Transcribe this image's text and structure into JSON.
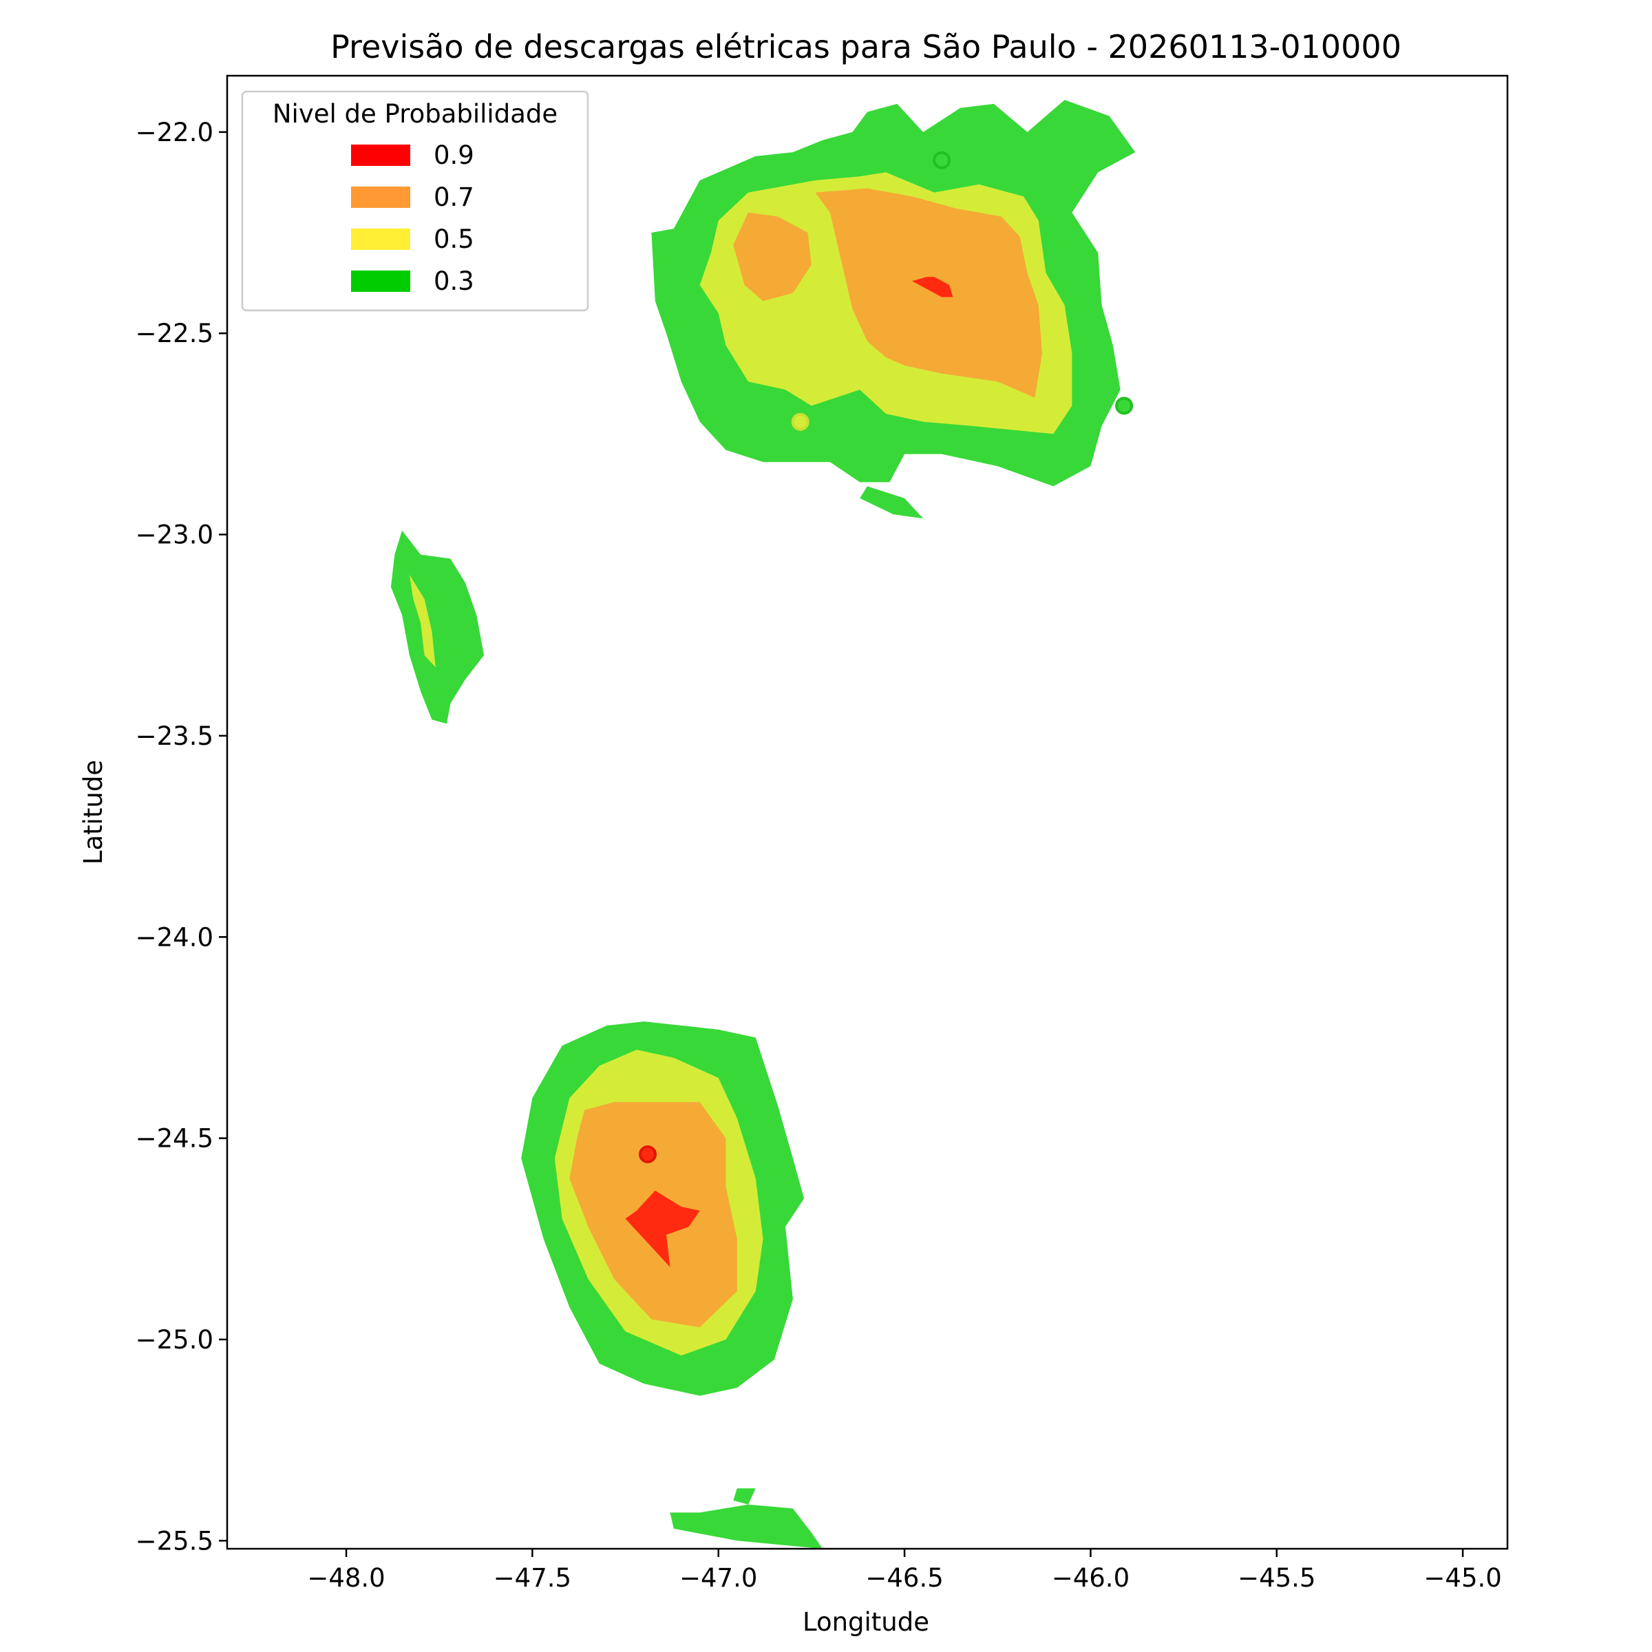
{
  "chart_data": {
    "type": "contour-map",
    "title": "Previsão de descargas elétricas para São Paulo - 20260113-010000",
    "xlabel": "Longitude",
    "ylabel": "Latitude",
    "xlim": [
      -48.32,
      -44.88
    ],
    "ylim": [
      -25.52,
      -21.86
    ],
    "x_ticks": [
      -48.0,
      -47.5,
      -47.0,
      -46.5,
      -46.0,
      -45.5,
      -45.0
    ],
    "x_tick_labels": [
      "−48.0",
      "−47.5",
      "−47.0",
      "−46.5",
      "−46.0",
      "−45.5",
      "−45.0"
    ],
    "y_ticks": [
      -22.0,
      -22.5,
      -23.0,
      -23.5,
      -24.0,
      -24.5,
      -25.0,
      -25.5
    ],
    "y_tick_labels": [
      "−22.0",
      "−22.5",
      "−23.0",
      "−23.5",
      "−24.0",
      "−24.5",
      "−25.0",
      "−25.5"
    ],
    "grid": false,
    "legend": {
      "title": "Nivel de Probabilidade",
      "placement": "top-left",
      "entries": [
        {
          "label": "0.9",
          "color": "#ff0000"
        },
        {
          "label": "0.7",
          "color": "#ff9933"
        },
        {
          "label": "0.5",
          "color": "#ffee33"
        },
        {
          "label": "0.3",
          "color": "#00cc00"
        }
      ]
    },
    "level_colors": {
      "0.3": "#38d838",
      "0.5": "#d4ec38",
      "0.7": "#f5aa36",
      "0.9": "#ff2a10"
    },
    "regions": [
      {
        "level": "0.3",
        "name": "north-cell-0.3",
        "lonlat": [
          [
            -46.64,
            -22.0
          ],
          [
            -46.72,
            -22.02
          ],
          [
            -46.8,
            -22.05
          ],
          [
            -46.9,
            -22.06
          ],
          [
            -47.05,
            -22.12
          ],
          [
            -47.12,
            -22.24
          ],
          [
            -47.18,
            -22.25
          ],
          [
            -47.17,
            -22.42
          ],
          [
            -47.14,
            -22.5
          ],
          [
            -47.1,
            -22.62
          ],
          [
            -47.05,
            -22.72
          ],
          [
            -46.98,
            -22.79
          ],
          [
            -46.88,
            -22.82
          ],
          [
            -46.7,
            -22.82
          ],
          [
            -46.62,
            -22.87
          ],
          [
            -46.54,
            -22.87
          ],
          [
            -46.5,
            -22.8
          ],
          [
            -46.4,
            -22.8
          ],
          [
            -46.25,
            -22.83
          ],
          [
            -46.1,
            -22.88
          ],
          [
            -46.0,
            -22.83
          ],
          [
            -45.97,
            -22.73
          ],
          [
            -45.92,
            -22.64
          ],
          [
            -45.94,
            -22.53
          ],
          [
            -45.97,
            -22.43
          ],
          [
            -45.98,
            -22.3
          ],
          [
            -46.05,
            -22.2
          ],
          [
            -45.98,
            -22.1
          ],
          [
            -45.88,
            -22.05
          ],
          [
            -45.95,
            -21.96
          ],
          [
            -46.07,
            -21.92
          ],
          [
            -46.17,
            -22.0
          ],
          [
            -46.26,
            -21.93
          ],
          [
            -46.35,
            -21.94
          ],
          [
            -46.45,
            -22.0
          ],
          [
            -46.52,
            -21.93
          ],
          [
            -46.6,
            -21.95
          ]
        ]
      },
      {
        "level": "0.3",
        "name": "north-cell-tail-0.3",
        "lonlat": [
          [
            -46.6,
            -22.88
          ],
          [
            -46.5,
            -22.91
          ],
          [
            -46.45,
            -22.96
          ],
          [
            -46.53,
            -22.95
          ],
          [
            -46.62,
            -22.91
          ]
        ]
      },
      {
        "level": "0.5",
        "name": "north-cell-0.5",
        "lonlat": [
          [
            -46.74,
            -22.12
          ],
          [
            -46.8,
            -22.13
          ],
          [
            -46.92,
            -22.15
          ],
          [
            -47.0,
            -22.22
          ],
          [
            -47.02,
            -22.3
          ],
          [
            -47.05,
            -22.38
          ],
          [
            -47.0,
            -22.45
          ],
          [
            -46.98,
            -22.53
          ],
          [
            -46.92,
            -22.62
          ],
          [
            -46.82,
            -22.64
          ],
          [
            -46.75,
            -22.68
          ],
          [
            -46.62,
            -22.64
          ],
          [
            -46.55,
            -22.7
          ],
          [
            -46.45,
            -22.72
          ],
          [
            -46.32,
            -22.73
          ],
          [
            -46.1,
            -22.75
          ],
          [
            -46.05,
            -22.68
          ],
          [
            -46.05,
            -22.55
          ],
          [
            -46.07,
            -22.43
          ],
          [
            -46.12,
            -22.35
          ],
          [
            -46.14,
            -22.22
          ],
          [
            -46.18,
            -22.16
          ],
          [
            -46.3,
            -22.13
          ],
          [
            -46.42,
            -22.15
          ],
          [
            -46.55,
            -22.1
          ],
          [
            -46.62,
            -22.11
          ]
        ]
      },
      {
        "level": "0.7",
        "name": "north-cell-0.7",
        "lonlat": [
          [
            -46.74,
            -22.15
          ],
          [
            -46.7,
            -22.2
          ],
          [
            -46.68,
            -22.28
          ],
          [
            -46.66,
            -22.36
          ],
          [
            -46.64,
            -22.44
          ],
          [
            -46.6,
            -22.52
          ],
          [
            -46.55,
            -22.56
          ],
          [
            -46.5,
            -22.58
          ],
          [
            -46.4,
            -22.6
          ],
          [
            -46.25,
            -22.62
          ],
          [
            -46.15,
            -22.66
          ],
          [
            -46.13,
            -22.55
          ],
          [
            -46.14,
            -22.43
          ],
          [
            -46.17,
            -22.35
          ],
          [
            -46.19,
            -22.26
          ],
          [
            -46.24,
            -22.21
          ],
          [
            -46.36,
            -22.19
          ],
          [
            -46.48,
            -22.16
          ],
          [
            -46.6,
            -22.14
          ]
        ]
      },
      {
        "level": "0.7",
        "name": "north-cell-west-0.7",
        "lonlat": [
          [
            -46.92,
            -22.2
          ],
          [
            -46.96,
            -22.28
          ],
          [
            -46.93,
            -22.38
          ],
          [
            -46.88,
            -22.42
          ],
          [
            -46.8,
            -22.4
          ],
          [
            -46.75,
            -22.33
          ],
          [
            -46.76,
            -22.25
          ],
          [
            -46.84,
            -22.21
          ]
        ]
      },
      {
        "level": "0.9",
        "name": "north-cell-0.9",
        "lonlat": [
          [
            -46.48,
            -22.37
          ],
          [
            -46.44,
            -22.36
          ],
          [
            -46.42,
            -22.36
          ],
          [
            -46.38,
            -22.38
          ],
          [
            -46.37,
            -22.41
          ],
          [
            -46.4,
            -22.41
          ],
          [
            -46.44,
            -22.39
          ]
        ]
      },
      {
        "level": "0.3",
        "name": "west-cell-0.3",
        "lonlat": [
          [
            -47.85,
            -22.99
          ],
          [
            -47.8,
            -23.05
          ],
          [
            -47.72,
            -23.06
          ],
          [
            -47.68,
            -23.12
          ],
          [
            -47.65,
            -23.2
          ],
          [
            -47.63,
            -23.3
          ],
          [
            -47.68,
            -23.36
          ],
          [
            -47.72,
            -23.42
          ],
          [
            -47.73,
            -23.47
          ],
          [
            -47.77,
            -23.46
          ],
          [
            -47.8,
            -23.39
          ],
          [
            -47.83,
            -23.3
          ],
          [
            -47.85,
            -23.2
          ],
          [
            -47.88,
            -23.13
          ],
          [
            -47.87,
            -23.05
          ]
        ]
      },
      {
        "level": "0.5",
        "name": "west-cell-0.5",
        "lonlat": [
          [
            -47.83,
            -23.1
          ],
          [
            -47.79,
            -23.16
          ],
          [
            -47.77,
            -23.24
          ],
          [
            -47.76,
            -23.33
          ],
          [
            -47.79,
            -23.3
          ],
          [
            -47.8,
            -23.22
          ],
          [
            -47.82,
            -23.16
          ]
        ]
      },
      {
        "level": "0.3",
        "name": "south-cell-0.3",
        "lonlat": [
          [
            -47.3,
            -24.22
          ],
          [
            -47.2,
            -24.21
          ],
          [
            -47.0,
            -24.23
          ],
          [
            -46.9,
            -24.25
          ],
          [
            -46.84,
            -24.42
          ],
          [
            -46.8,
            -24.55
          ],
          [
            -46.77,
            -24.65
          ],
          [
            -46.82,
            -24.72
          ],
          [
            -46.8,
            -24.9
          ],
          [
            -46.85,
            -25.05
          ],
          [
            -46.95,
            -25.12
          ],
          [
            -47.05,
            -25.14
          ],
          [
            -47.2,
            -25.11
          ],
          [
            -47.32,
            -25.06
          ],
          [
            -47.4,
            -24.92
          ],
          [
            -47.47,
            -24.75
          ],
          [
            -47.53,
            -24.55
          ],
          [
            -47.5,
            -24.4
          ],
          [
            -47.42,
            -24.27
          ]
        ]
      },
      {
        "level": "0.5",
        "name": "south-cell-0.5",
        "lonlat": [
          [
            -47.22,
            -24.28
          ],
          [
            -47.12,
            -24.3
          ],
          [
            -47.0,
            -24.35
          ],
          [
            -46.95,
            -24.45
          ],
          [
            -46.9,
            -24.6
          ],
          [
            -46.88,
            -24.75
          ],
          [
            -46.9,
            -24.88
          ],
          [
            -46.98,
            -25.0
          ],
          [
            -47.1,
            -25.04
          ],
          [
            -47.25,
            -24.98
          ],
          [
            -47.35,
            -24.85
          ],
          [
            -47.42,
            -24.7
          ],
          [
            -47.44,
            -24.55
          ],
          [
            -47.4,
            -24.4
          ],
          [
            -47.32,
            -24.32
          ]
        ]
      },
      {
        "level": "0.7",
        "name": "south-cell-0.7",
        "lonlat": [
          [
            -47.36,
            -24.43
          ],
          [
            -47.28,
            -24.41
          ],
          [
            -47.05,
            -24.41
          ],
          [
            -46.98,
            -24.5
          ],
          [
            -46.98,
            -24.62
          ],
          [
            -46.95,
            -24.75
          ],
          [
            -46.95,
            -24.88
          ],
          [
            -47.05,
            -24.97
          ],
          [
            -47.18,
            -24.95
          ],
          [
            -47.28,
            -24.85
          ],
          [
            -47.35,
            -24.72
          ],
          [
            -47.4,
            -24.6
          ],
          [
            -47.38,
            -24.5
          ]
        ]
      },
      {
        "level": "0.9",
        "name": "south-cell-0.9",
        "lonlat": [
          [
            -47.17,
            -24.63
          ],
          [
            -47.22,
            -24.68
          ],
          [
            -47.25,
            -24.7
          ],
          [
            -47.2,
            -24.75
          ],
          [
            -47.13,
            -24.82
          ],
          [
            -47.14,
            -24.74
          ],
          [
            -47.08,
            -24.72
          ],
          [
            -47.05,
            -24.68
          ],
          [
            -47.1,
            -24.67
          ]
        ]
      },
      {
        "level": "0.3",
        "name": "south-fragment-a-0.3",
        "lonlat": [
          [
            -46.95,
            -25.37
          ],
          [
            -46.9,
            -25.37
          ],
          [
            -46.92,
            -25.41
          ],
          [
            -46.96,
            -25.4
          ]
        ]
      },
      {
        "level": "0.3",
        "name": "south-fragment-b-0.3",
        "lonlat": [
          [
            -47.13,
            -25.43
          ],
          [
            -47.05,
            -25.43
          ],
          [
            -46.92,
            -25.41
          ],
          [
            -46.8,
            -25.42
          ],
          [
            -46.75,
            -25.48
          ],
          [
            -46.72,
            -25.52
          ],
          [
            -46.95,
            -25.5
          ],
          [
            -47.12,
            -25.47
          ]
        ]
      }
    ],
    "points": [
      {
        "level": "0.3",
        "name": "point-north-top",
        "lon": -46.4,
        "lat": -22.07
      },
      {
        "level": "0.3",
        "name": "point-north-east",
        "lon": -45.91,
        "lat": -22.68
      },
      {
        "level": "0.5",
        "name": "point-north-south",
        "lon": -46.78,
        "lat": -22.72
      },
      {
        "level": "0.9",
        "name": "point-south",
        "lon": -47.19,
        "lat": -24.54
      }
    ]
  }
}
